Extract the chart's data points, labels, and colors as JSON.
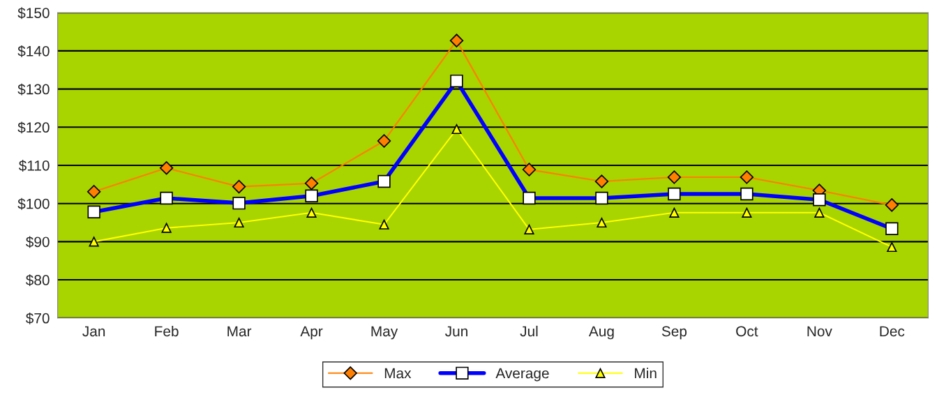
{
  "chart_data": {
    "type": "line",
    "categories": [
      "Jan",
      "Feb",
      "Mar",
      "Apr",
      "May",
      "Jun",
      "Jul",
      "Aug",
      "Sep",
      "Oct",
      "Nov",
      "Dec"
    ],
    "series": [
      {
        "name": "Max",
        "color": "#ff7f00",
        "marker": "diamond",
        "values": [
          103.1,
          109.3,
          104.4,
          105.3,
          116.4,
          142.7,
          108.9,
          105.8,
          106.9,
          106.9,
          103.4,
          99.6
        ]
      },
      {
        "name": "Average",
        "color": "#0000ff",
        "marker": "square",
        "values": [
          97.8,
          101.4,
          100.1,
          102.0,
          105.8,
          132.1,
          101.4,
          101.4,
          102.5,
          102.5,
          101.0,
          93.4
        ]
      },
      {
        "name": "Min",
        "color": "#ffff00",
        "marker": "triangle",
        "values": [
          90.0,
          93.6,
          95.0,
          97.6,
          94.5,
          119.5,
          93.2,
          95.0,
          97.6,
          97.6,
          97.6,
          88.6
        ]
      }
    ],
    "ylim": [
      70,
      150
    ],
    "yticks": [
      {
        "value": 70,
        "label": "$70"
      },
      {
        "value": 80,
        "label": "$80"
      },
      {
        "value": 90,
        "label": "$90"
      },
      {
        "value": 100,
        "label": "$100"
      },
      {
        "value": 110,
        "label": "$110"
      },
      {
        "value": 120,
        "label": "$120"
      },
      {
        "value": 130,
        "label": "$130"
      },
      {
        "value": 140,
        "label": "$140"
      },
      {
        "value": 150,
        "label": "$150"
      }
    ],
    "grid": "y",
    "legend": "bottom"
  }
}
